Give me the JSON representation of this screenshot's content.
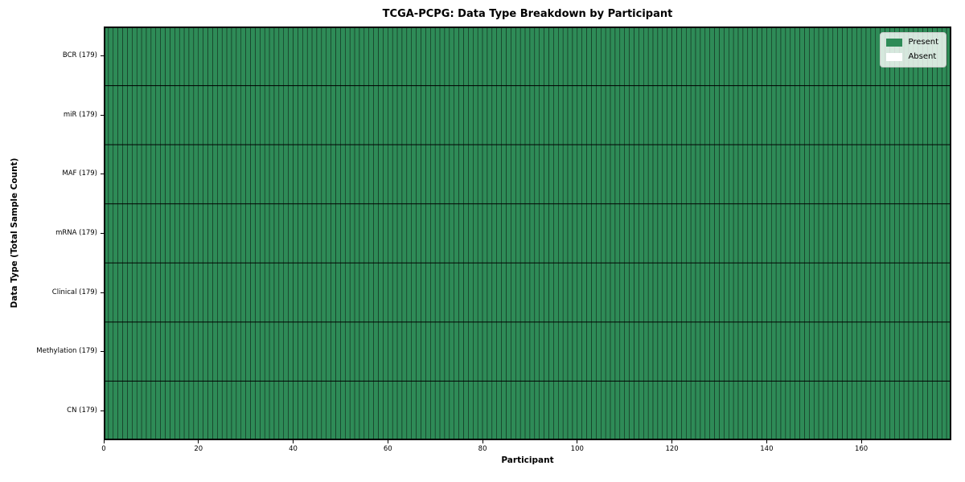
{
  "chart_data": {
    "type": "heatmap",
    "title": "TCGA-PCPG: Data Type Breakdown by Participant",
    "xlabel": "Participant",
    "ylabel": "Data Type (Total Sample Count)",
    "n_participants": 179,
    "x_ticks": [
      0,
      20,
      40,
      60,
      80,
      100,
      120,
      140,
      160
    ],
    "x_range": [
      0,
      179
    ],
    "rows": [
      {
        "label": "BCR (179)",
        "data_type": "BCR",
        "total_samples": 179,
        "present_count": 179,
        "absent_count": 0,
        "present_ranges": [
          [
            0,
            179
          ]
        ]
      },
      {
        "label": "miR (179)",
        "data_type": "miR",
        "total_samples": 179,
        "present_count": 179,
        "absent_count": 0,
        "present_ranges": [
          [
            0,
            179
          ]
        ]
      },
      {
        "label": "MAF (179)",
        "data_type": "MAF",
        "total_samples": 179,
        "present_count": 179,
        "absent_count": 0,
        "present_ranges": [
          [
            0,
            179
          ]
        ]
      },
      {
        "label": "mRNA (179)",
        "data_type": "mRNA",
        "total_samples": 179,
        "present_count": 179,
        "absent_count": 0,
        "present_ranges": [
          [
            0,
            179
          ]
        ]
      },
      {
        "label": "Clinical (179)",
        "data_type": "Clinical",
        "total_samples": 179,
        "present_count": 179,
        "absent_count": 0,
        "present_ranges": [
          [
            0,
            179
          ]
        ]
      },
      {
        "label": "Methylation (179)",
        "data_type": "Methylation",
        "total_samples": 179,
        "present_count": 179,
        "absent_count": 0,
        "present_ranges": [
          [
            0,
            179
          ]
        ]
      },
      {
        "label": "CN (179)",
        "data_type": "CN",
        "total_samples": 179,
        "present_count": 179,
        "absent_count": 0,
        "present_ranges": [
          [
            0,
            179
          ]
        ]
      }
    ],
    "legend": [
      {
        "label": "Present",
        "color": "#2e8b57"
      },
      {
        "label": "Absent",
        "color": "#ffffff"
      }
    ],
    "colors": {
      "present": "#2e8b57",
      "absent": "#ffffff",
      "cell_edge": "#000000",
      "row_separator": "#000000",
      "plot_border": "#000000"
    },
    "layout": {
      "legend_position": "upper right",
      "grid": "per-cell vertical borders + row separators"
    }
  }
}
